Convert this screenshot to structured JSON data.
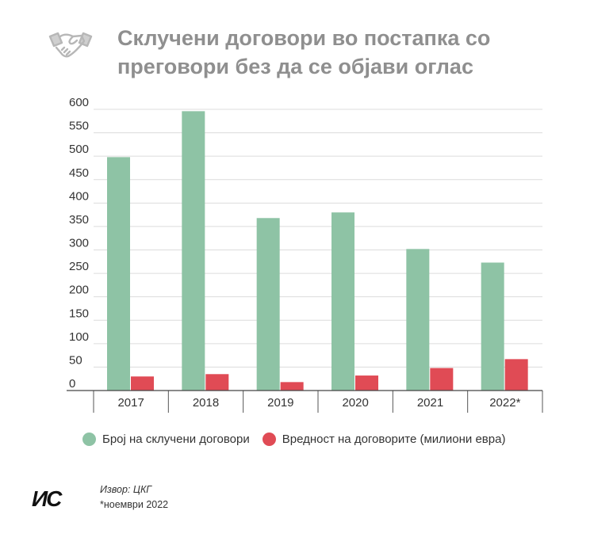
{
  "header": {
    "title": "Склучени договори во постапка со преговори без да се објави оглас",
    "icon": "handshake-icon"
  },
  "chart_data": {
    "type": "bar",
    "categories": [
      "2017",
      "2018",
      "2019",
      "2020",
      "2021",
      "2022*"
    ],
    "series": [
      {
        "name": "Број на склучени договори",
        "color": "#8ec3a5",
        "values": [
          498,
          596,
          368,
          380,
          302,
          273
        ]
      },
      {
        "name": "Вредност на договорите (милиони евра)",
        "color": "#e04b55",
        "values": [
          30,
          35,
          18,
          32,
          48,
          67
        ]
      }
    ],
    "ylim": [
      0,
      600
    ],
    "yticks": [
      0,
      50,
      100,
      150,
      200,
      250,
      300,
      350,
      400,
      450,
      500,
      550,
      600
    ],
    "grid": true,
    "legend": "bottom"
  },
  "footer": {
    "logo_text": "ИС",
    "source": "Извор: ЦКГ",
    "note": "*ноември 2022"
  }
}
